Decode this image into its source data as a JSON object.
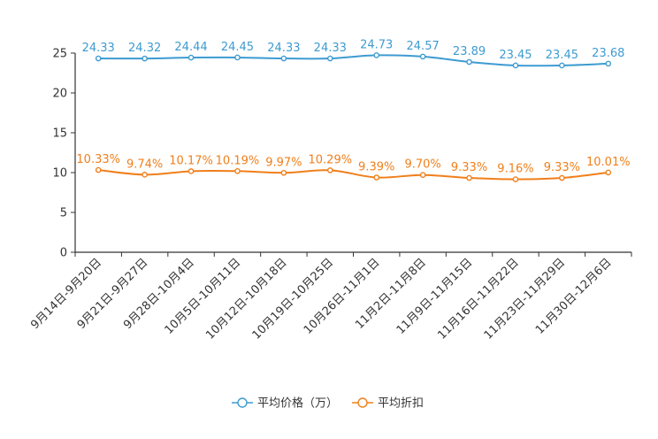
{
  "chart_data": {
    "type": "line",
    "title": "",
    "xlabel": "",
    "ylabel": "",
    "ylim": [
      0,
      25
    ],
    "yticks": [
      0,
      5,
      10,
      15,
      20,
      25
    ],
    "categories": [
      "9月14日-9月20日",
      "9月21日-9月27日",
      "9月28日-10月4日",
      "10月5日-10月11日",
      "10月12日-10月18日",
      "10月19日-10月25日",
      "10月26日-11月1日",
      "11月2日-11月8日",
      "11月9日-11月15日",
      "11月16日-11月22日",
      "11月23日-11月29日",
      "11月30日-12月6日"
    ],
    "series": [
      {
        "name": "平均价格（万）",
        "color": "#3d9bd1",
        "values": [
          24.33,
          24.32,
          24.44,
          24.45,
          24.33,
          24.33,
          24.73,
          24.57,
          23.89,
          23.45,
          23.45,
          23.68
        ],
        "labels": [
          "24.33",
          "24.32",
          "24.44",
          "24.45",
          "24.33",
          "24.33",
          "24.73",
          "24.57",
          "23.89",
          "23.45",
          "23.45",
          "23.68"
        ]
      },
      {
        "name": "平均折扣",
        "color": "#f07f1b",
        "values": [
          10.33,
          9.74,
          10.17,
          10.19,
          9.97,
          10.29,
          9.39,
          9.7,
          9.33,
          9.16,
          9.33,
          10.01
        ],
        "labels": [
          "10.33%",
          "9.74%",
          "10.17%",
          "10.19%",
          "9.97%",
          "10.29%",
          "9.39%",
          "9.70%",
          "9.33%",
          "9.16%",
          "9.33%",
          "10.01%"
        ]
      }
    ],
    "legend_position": "bottom"
  }
}
